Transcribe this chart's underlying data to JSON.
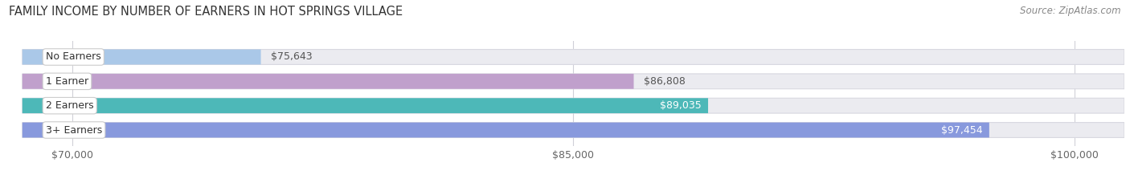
{
  "title": "FAMILY INCOME BY NUMBER OF EARNERS IN HOT SPRINGS VILLAGE",
  "source": "Source: ZipAtlas.com",
  "categories": [
    "No Earners",
    "1 Earner",
    "2 Earners",
    "3+ Earners"
  ],
  "values": [
    75643,
    86808,
    89035,
    97454
  ],
  "bar_colors": [
    "#aac8e8",
    "#c0a0cc",
    "#4db8b8",
    "#8899dd"
  ],
  "value_inside": [
    false,
    false,
    true,
    true
  ],
  "xlim_min": 68000,
  "xlim_max": 101500,
  "xticks": [
    70000,
    85000,
    100000
  ],
  "xtick_labels": [
    "$70,000",
    "$85,000",
    "$100,000"
  ],
  "bg_color": "#ffffff",
  "bar_track_color": "#ebebf0",
  "bar_track_border": "#d8d8e0",
  "title_fontsize": 10.5,
  "label_fontsize": 9,
  "value_fontsize": 9,
  "source_fontsize": 8.5,
  "grid_color": "#d0d0d8"
}
